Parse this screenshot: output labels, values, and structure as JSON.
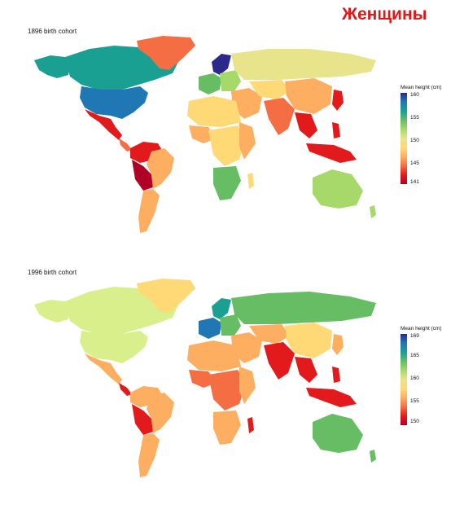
{
  "title": "Женщины",
  "title_color": "#e01818",
  "panels": [
    {
      "label": "1896 birth cohort",
      "legend_title": "Mean height (cm)",
      "ticks": [
        "160",
        "155",
        "150",
        "145",
        "141"
      ],
      "colors": [
        "#2b2a8a",
        "#1f78b4",
        "#1aa093",
        "#66bd63",
        "#a6d96a",
        "#e8e48c",
        "#fed976",
        "#fdae61",
        "#f46d43",
        "#e31a1c",
        "#b10026"
      ]
    },
    {
      "label": "1996 birth cohort",
      "legend_title": "Mean height (cm)",
      "ticks": [
        "169",
        "165",
        "160",
        "155",
        "150"
      ],
      "colors": [
        "#2b2a8a",
        "#1f78b4",
        "#1aa093",
        "#66bd63",
        "#a6d96a",
        "#e8e48c",
        "#fed976",
        "#fdae61",
        "#f46d43",
        "#e31a1c",
        "#b10026"
      ]
    }
  ]
}
